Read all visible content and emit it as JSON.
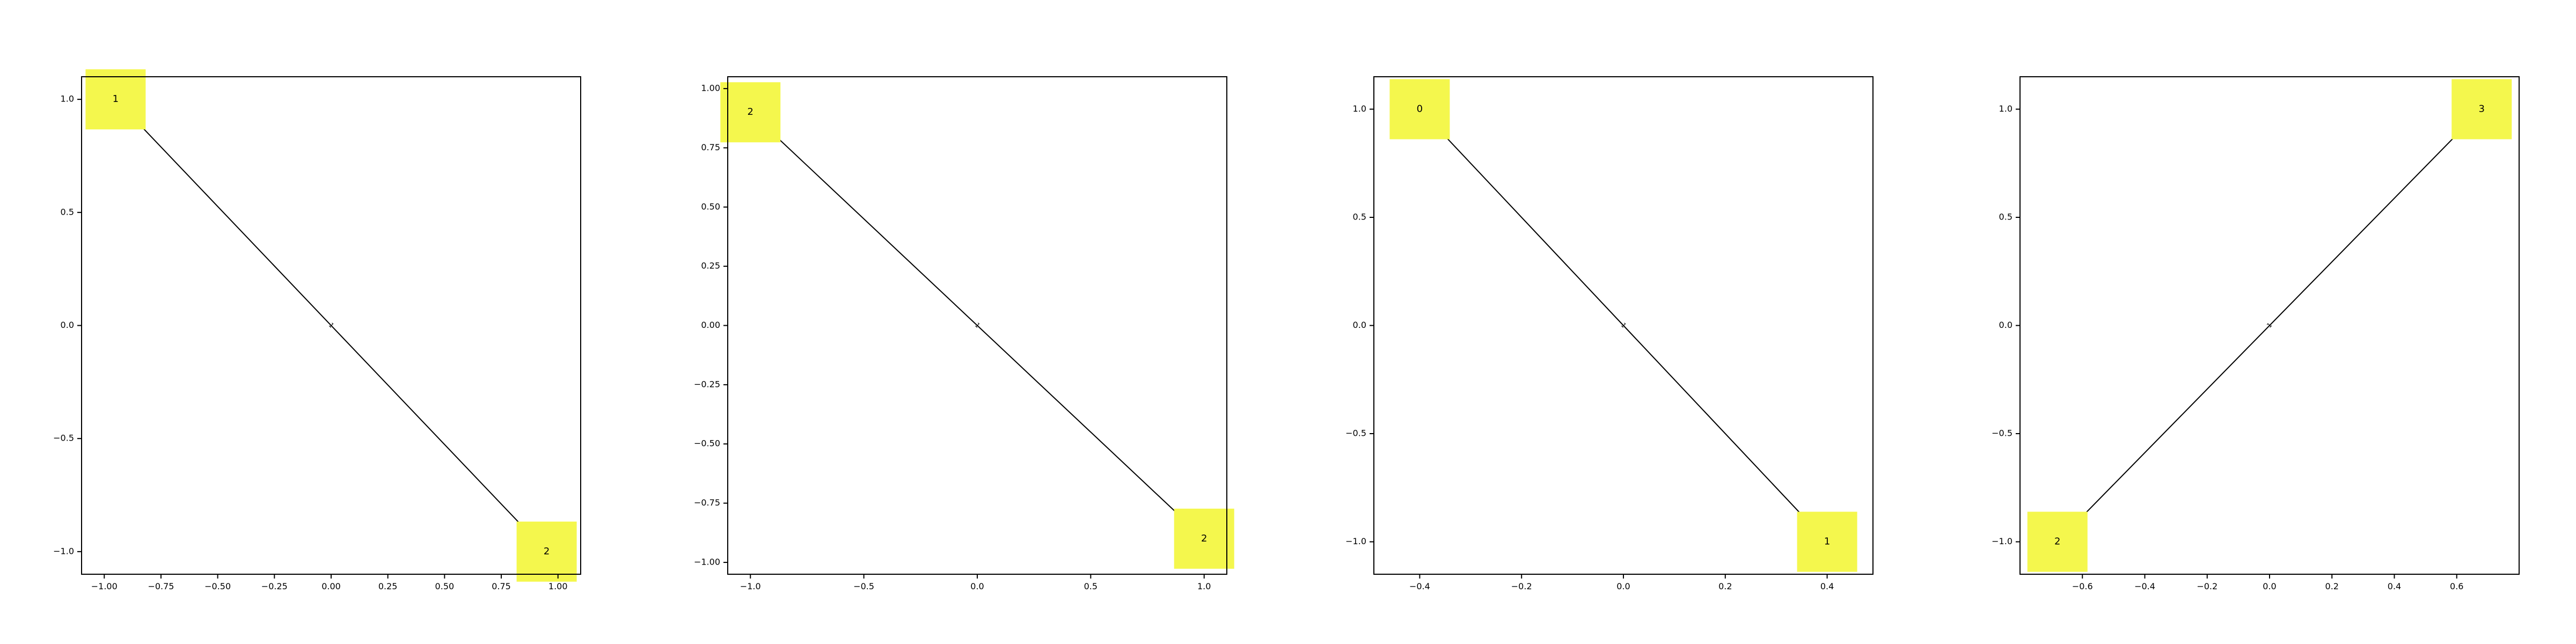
{
  "colors": {
    "node_fill": "#f4f74d",
    "edge": "#000000",
    "frame": "#000000",
    "background": "#ffffff"
  },
  "chart_data": [
    {
      "type": "network",
      "title": "",
      "xlim": [
        -1.1,
        1.1
      ],
      "ylim": [
        -1.1,
        1.1
      ],
      "xticks": [
        "−1.00",
        "−0.75",
        "−0.50",
        "−0.25",
        "0.00",
        "0.25",
        "0.50",
        "0.75",
        "1.00"
      ],
      "xtick_values": [
        -1.0,
        -0.75,
        -0.5,
        -0.25,
        0.0,
        0.25,
        0.5,
        0.75,
        1.0
      ],
      "yticks": [
        "−1.0",
        "−0.5",
        "0.0",
        "0.5",
        "1.0"
      ],
      "ytick_values": [
        -1.0,
        -0.5,
        0.0,
        0.5,
        1.0
      ],
      "nodes": [
        {
          "label": "1",
          "x": -0.95,
          "y": 1.0
        },
        {
          "label": "2",
          "x": 0.95,
          "y": -1.0
        }
      ],
      "edges": [
        {
          "from": 0,
          "to": 1,
          "label": "1"
        }
      ]
    },
    {
      "type": "network",
      "title": "",
      "xlim": [
        -1.1,
        1.1
      ],
      "ylim": [
        -1.05,
        1.05
      ],
      "xticks": [
        "−1.0",
        "−0.5",
        "0.0",
        "0.5",
        "1.0"
      ],
      "xtick_values": [
        -1.0,
        -0.5,
        0.0,
        0.5,
        1.0
      ],
      "yticks": [
        "−1.00",
        "−0.75",
        "−0.50",
        "−0.25",
        "0.00",
        "0.25",
        "0.50",
        "0.75",
        "1.00"
      ],
      "ytick_values": [
        -1.0,
        -0.75,
        -0.5,
        -0.25,
        0.0,
        0.25,
        0.5,
        0.75,
        1.0
      ],
      "nodes": [
        {
          "label": "2",
          "x": -1.0,
          "y": 0.9
        },
        {
          "label": "2",
          "x": 1.0,
          "y": -0.9
        }
      ],
      "edges": [
        {
          "from": 0,
          "to": 1,
          "label": "1"
        }
      ]
    },
    {
      "type": "network",
      "title": "",
      "xlim": [
        -0.49,
        0.49
      ],
      "ylim": [
        -1.15,
        1.15
      ],
      "xticks": [
        "−0.4",
        "−0.2",
        "0.0",
        "0.2",
        "0.4"
      ],
      "xtick_values": [
        -0.4,
        -0.2,
        0.0,
        0.2,
        0.4
      ],
      "yticks": [
        "−1.0",
        "−0.5",
        "0.0",
        "0.5",
        "1.0"
      ],
      "ytick_values": [
        -1.0,
        -0.5,
        0.0,
        0.5,
        1.0
      ],
      "nodes": [
        {
          "label": "0",
          "x": -0.4,
          "y": 1.0
        },
        {
          "label": "1",
          "x": 0.4,
          "y": -1.0
        }
      ],
      "edges": [
        {
          "from": 0,
          "to": 1,
          "label": "1"
        }
      ]
    },
    {
      "type": "network",
      "title": "",
      "xlim": [
        -0.8,
        0.8
      ],
      "ylim": [
        -1.15,
        1.15
      ],
      "xticks": [
        "−0.6",
        "−0.4",
        "−0.2",
        "0.0",
        "0.2",
        "0.4",
        "0.6"
      ],
      "xtick_values": [
        -0.6,
        -0.4,
        -0.2,
        0.0,
        0.2,
        0.4,
        0.6
      ],
      "yticks": [
        "−1.0",
        "−0.5",
        "0.0",
        "0.5",
        "1.0"
      ],
      "ytick_values": [
        -1.0,
        -0.5,
        0.0,
        0.5,
        1.0
      ],
      "nodes": [
        {
          "label": "2",
          "x": -0.68,
          "y": -1.0
        },
        {
          "label": "3",
          "x": 0.68,
          "y": 1.0
        }
      ],
      "edges": [
        {
          "from": 0,
          "to": 1,
          "label": "1"
        }
      ]
    }
  ]
}
